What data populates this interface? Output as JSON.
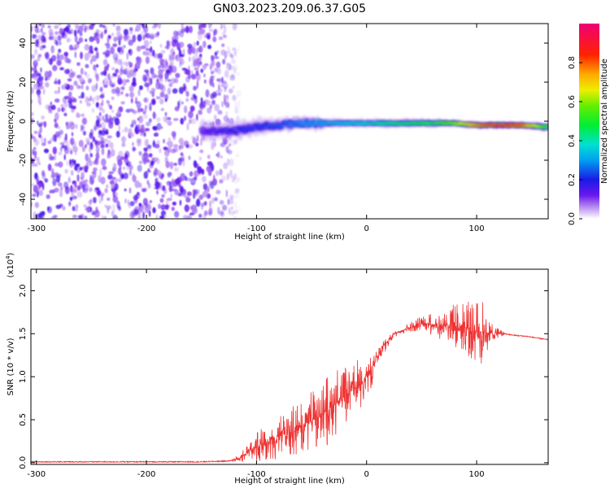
{
  "title": "GN03.2023.209.06.37.G05",
  "colors": {
    "snr_line": "#ee3333",
    "spectrogram_noise": "#7a2cf0",
    "colormap": "rainbow"
  },
  "chart_data": [
    {
      "type": "heatmap",
      "name": "spectrogram",
      "xlabel": "Height of straight line (km)",
      "ylabel": "Frequency (Hz)",
      "xlim": [
        -305,
        165
      ],
      "ylim": [
        -50,
        50
      ],
      "xticks": [
        -300,
        -200,
        -100,
        0,
        100
      ],
      "xtick_labels": [
        "-300",
        "-200",
        "-100",
        "0",
        "100"
      ],
      "yticks": [
        40,
        20,
        0,
        -20,
        -40
      ],
      "ytick_labels": [
        "40",
        "20",
        "0",
        "-20",
        "-40"
      ],
      "noise_region_x": [
        -305,
        -130
      ],
      "ridge": {
        "description_points_x": [
          -150,
          -120,
          -100,
          -80,
          -60,
          -40,
          -20,
          0,
          20,
          40,
          60,
          80,
          100,
          120,
          140,
          165
        ],
        "frequency": [
          -5,
          -5,
          -3,
          -2,
          -1,
          -1,
          -1,
          -1,
          -1,
          -1,
          -1,
          -1,
          -2,
          -2,
          -2,
          -3
        ],
        "amplitude": [
          0.15,
          0.2,
          0.22,
          0.25,
          0.3,
          0.35,
          0.38,
          0.4,
          0.45,
          0.48,
          0.5,
          0.6,
          0.8,
          0.9,
          0.85,
          0.5
        ],
        "width_hz": [
          10,
          9,
          8,
          7,
          6,
          5,
          4,
          4,
          4,
          4,
          4,
          3,
          3,
          3,
          3,
          4
        ]
      },
      "colorbar": {
        "label": "Normalized spectral amplitude",
        "range": [
          0,
          1
        ],
        "ticks": [
          0.0,
          0.2,
          0.4,
          0.6,
          0.8
        ],
        "tick_labels": [
          "0.0",
          "0.2",
          "0.4",
          "0.6",
          "0.8"
        ]
      }
    },
    {
      "type": "line",
      "name": "snr",
      "xlabel": "Height of straight line (km)",
      "ylabel": "SNR (10 * v/v)",
      "scale_label": "(x10",
      "scale_exponent": "4",
      "scale_close": ")",
      "xlim": [
        -305,
        165
      ],
      "ylim": [
        -0.02,
        2.25
      ],
      "xticks": [
        -300,
        -200,
        -100,
        0,
        100
      ],
      "xtick_labels": [
        "-300",
        "-200",
        "-100",
        "0",
        "100"
      ],
      "yticks": [
        0.0,
        0.5,
        1.0,
        1.5,
        2.0
      ],
      "ytick_labels": [
        "0.0",
        "0.5",
        "1.0",
        "1.5",
        "2.0"
      ],
      "series": [
        {
          "x": [
            -305,
            -260,
            -200,
            -150,
            -125,
            -115,
            -105,
            -95,
            -85,
            -75,
            -65,
            -55,
            -45,
            -35,
            -25,
            -15,
            -5,
            5,
            15,
            25,
            35,
            45,
            55,
            65,
            75,
            85,
            95,
            105,
            115,
            125,
            135,
            145,
            155,
            165
          ],
          "y": [
            0.01,
            0.01,
            0.01,
            0.01,
            0.02,
            0.05,
            0.15,
            0.22,
            0.28,
            0.33,
            0.38,
            0.45,
            0.52,
            0.62,
            0.72,
            0.82,
            0.92,
            1.1,
            1.35,
            1.5,
            1.55,
            1.6,
            1.62,
            1.6,
            1.6,
            1.58,
            1.55,
            1.52,
            1.5,
            1.5,
            1.48,
            1.47,
            1.45,
            1.43
          ],
          "noise": [
            0,
            0,
            0,
            0,
            0.01,
            0.05,
            0.12,
            0.2,
            0.25,
            0.28,
            0.3,
            0.33,
            0.38,
            0.42,
            0.42,
            0.35,
            0.3,
            0.25,
            0.1,
            0.05,
            0.05,
            0.08,
            0.12,
            0.15,
            0.22,
            0.3,
            0.35,
            0.38,
            0.1,
            0.02,
            0.01,
            0.01,
            0.01,
            0.01
          ]
        }
      ]
    }
  ]
}
